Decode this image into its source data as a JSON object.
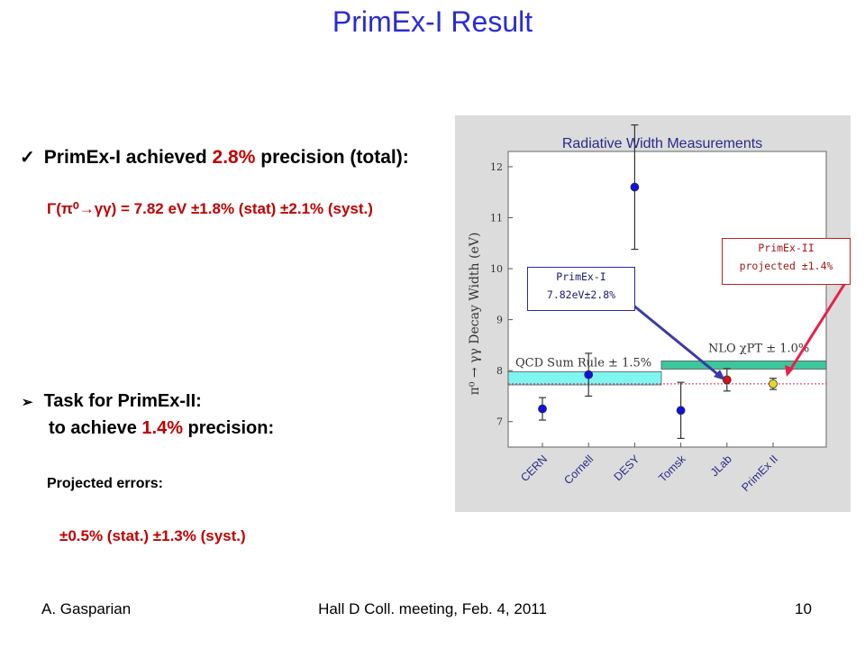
{
  "slide": {
    "title": "PrimEx-I Result",
    "bullet1": {
      "pre": "PrimEx-I achieved ",
      "highlight": "2.8%",
      "post": " precision (total):"
    },
    "formula": "Γ(π⁰→γγ) = 7.82 eV ±1.8% (stat) ±2.1% (syst.)",
    "bullet2": "Task for PrimEx-II:",
    "line2": {
      "pre": "to achieve ",
      "highlight": "1.4%",
      "post": " precision:"
    },
    "projected_label": "Projected errors:",
    "projected_errors": "±0.5% (stat.) ±1.3% (syst.)",
    "footer_left": "A. Gasparian",
    "footer_center": "Hall D Coll. meeting, Feb. 4, 2011",
    "footer_right": "10"
  },
  "colors": {
    "title_blue": "#2b2bd4",
    "highlight_red": "#c00000",
    "band_cyan": "#7ff5f0",
    "band_green": "#3cc69c",
    "point_blue": "#1010e0",
    "point_red": "#e01010",
    "point_yellow": "#e8d820",
    "arrow_blue": "#3a3aa8",
    "arrow_red": "#e8204a"
  },
  "callouts": {
    "primex1": {
      "line1": "PrimEx-I",
      "line2": "7.82eV±2.8%"
    },
    "primex2": {
      "line1": "PrimEx-II",
      "line2": "projected ±1.4%"
    }
  },
  "chart_data": {
    "type": "scatter",
    "title": "Radiative Width Measurements",
    "ylabel": "π⁰ → γγ Decay Width (eV)",
    "xlabel": "",
    "ylim": [
      6.5,
      12.3
    ],
    "yticks": [
      7,
      8,
      9,
      10,
      11,
      12
    ],
    "categories": [
      "CERN",
      "Cornell",
      "DESY",
      "Tomsk",
      "JLab",
      "PrimEx II"
    ],
    "points": [
      {
        "category": "CERN",
        "value": 7.25,
        "err": 0.22,
        "color": "blue"
      },
      {
        "category": "Cornell",
        "value": 7.92,
        "err": 0.42,
        "color": "blue"
      },
      {
        "category": "DESY",
        "value": 11.6,
        "err": 1.22,
        "color": "blue"
      },
      {
        "category": "Tomsk",
        "value": 7.22,
        "err": 0.55,
        "color": "blue"
      },
      {
        "category": "JLab",
        "value": 7.82,
        "err": 0.22,
        "color": "red"
      },
      {
        "category": "PrimEx II",
        "value": 7.74,
        "err": 0.11,
        "color": "yellow"
      }
    ],
    "bands": [
      {
        "label": "QCD Sum Rule  ± 1.5%",
        "from": "CERN",
        "to": "Tomsk-mid",
        "ymin": 7.72,
        "ymax": 7.98,
        "color": "cyan"
      },
      {
        "label": "NLO χPT  ± 1.0%",
        "from": "Tomsk-mid",
        "to": "end",
        "ymin": 8.03,
        "ymax": 8.19,
        "color": "green"
      }
    ],
    "reference_line": 7.74,
    "grid": false,
    "legend": "none"
  }
}
